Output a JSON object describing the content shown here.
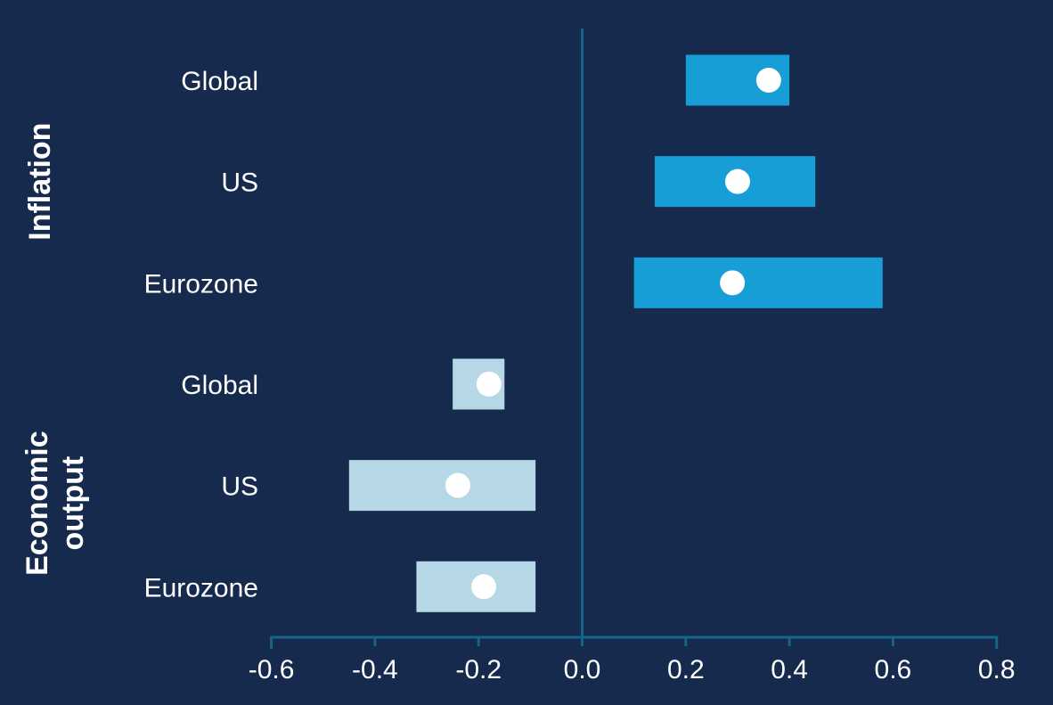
{
  "chart_data": {
    "type": "bar",
    "subtype": "horizontal-range-bars-with-point-estimates",
    "orientation": "horizontal",
    "title": "",
    "x_axis": {
      "ticks": [
        -0.6,
        -0.4,
        -0.2,
        0.0,
        0.2,
        0.4,
        0.6,
        0.8
      ],
      "tick_labels": [
        "-0.6",
        "-0.4",
        "-0.2",
        "0.0",
        "0.2",
        "0.4",
        "0.6",
        "0.8"
      ],
      "range": [
        -0.72,
        0.85
      ],
      "zero_line": true,
      "grid": false
    },
    "groups": [
      {
        "label": "Inflation",
        "label_lines": [
          "Inflation"
        ],
        "bar_color": "#189ed6",
        "rows": [
          {
            "label": "Global",
            "range": [
              0.2,
              0.4
            ],
            "point": 0.36
          },
          {
            "label": "US",
            "range": [
              0.14,
              0.45
            ],
            "point": 0.3
          },
          {
            "label": "Eurozone",
            "range": [
              0.1,
              0.58
            ],
            "point": 0.29
          }
        ]
      },
      {
        "label": "Economic output",
        "label_lines": [
          "Economic",
          "output"
        ],
        "bar_color": "#b6d8e6",
        "rows": [
          {
            "label": "Global",
            "range": [
              -0.25,
              -0.15
            ],
            "point": -0.18
          },
          {
            "label": "US",
            "range": [
              -0.45,
              -0.09
            ],
            "point": -0.24
          },
          {
            "label": "Eurozone",
            "range": [
              -0.32,
              -0.09
            ],
            "point": -0.19
          }
        ]
      }
    ],
    "marker": {
      "shape": "circle",
      "color": "#ffffff"
    },
    "colors": {
      "background": "#152a4d",
      "axis": "#15648c",
      "text": "#ffffff"
    },
    "legend_position": "none"
  }
}
